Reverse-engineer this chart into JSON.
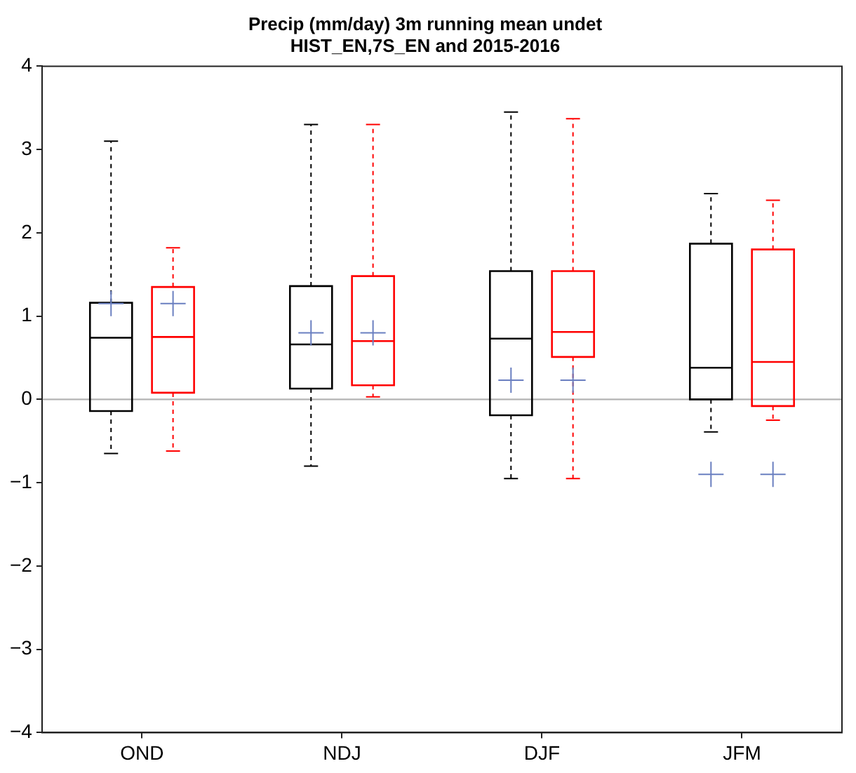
{
  "chart_data": {
    "type": "box",
    "title": "Precip (mm/day) 3m running mean undet\nHIST_EN,7S_EN and 2015-2016",
    "categories": [
      "OND",
      "NDJ",
      "DJF",
      "JFM"
    ],
    "ylim": [
      -4,
      4
    ],
    "yticks": [
      -4,
      -3,
      -2,
      -1,
      0,
      1,
      2,
      3,
      4
    ],
    "grid": false,
    "legend": false,
    "line_style": "dashed",
    "series": [
      {
        "color": "#000000",
        "boxes": [
          {
            "low": -0.65,
            "q1": -0.14,
            "median": 0.74,
            "q3": 1.16,
            "high": 3.1
          },
          {
            "low": -0.8,
            "q1": 0.13,
            "median": 0.66,
            "q3": 1.36,
            "high": 3.3
          },
          {
            "low": -0.95,
            "q1": -0.19,
            "median": 0.73,
            "q3": 1.54,
            "high": 3.45
          },
          {
            "low": -0.39,
            "q1": 0.0,
            "median": 0.38,
            "q3": 1.87,
            "high": 2.47
          }
        ]
      },
      {
        "color": "#ff0000",
        "boxes": [
          {
            "low": -0.62,
            "q1": 0.08,
            "median": 0.75,
            "q3": 1.35,
            "high": 1.82
          },
          {
            "low": 0.03,
            "q1": 0.17,
            "median": 0.7,
            "q3": 1.48,
            "high": 3.3
          },
          {
            "low": -0.95,
            "q1": 0.51,
            "median": 0.81,
            "q3": 1.54,
            "high": 3.37
          },
          {
            "low": -0.25,
            "q1": -0.08,
            "median": 0.45,
            "q3": 1.8,
            "high": 2.39
          }
        ]
      },
      {
        "type": "scatter",
        "color": "#6a7fc0",
        "marker": "cross",
        "x": [
          "OND",
          "NDJ",
          "DJF",
          "JFM"
        ],
        "values": [
          1.15,
          0.8,
          0.23,
          -0.9
        ]
      },
      {
        "type": "scatter",
        "color": "#6a7fc0",
        "marker": "cross",
        "x": [
          "OND",
          "NDJ",
          "DJF",
          "JFM"
        ],
        "values": [
          1.15,
          0.8,
          0.23,
          -0.9
        ]
      }
    ],
    "ref_lines": [
      {
        "axis": "y",
        "value": 0,
        "color": "#b4b4b4"
      }
    ]
  }
}
